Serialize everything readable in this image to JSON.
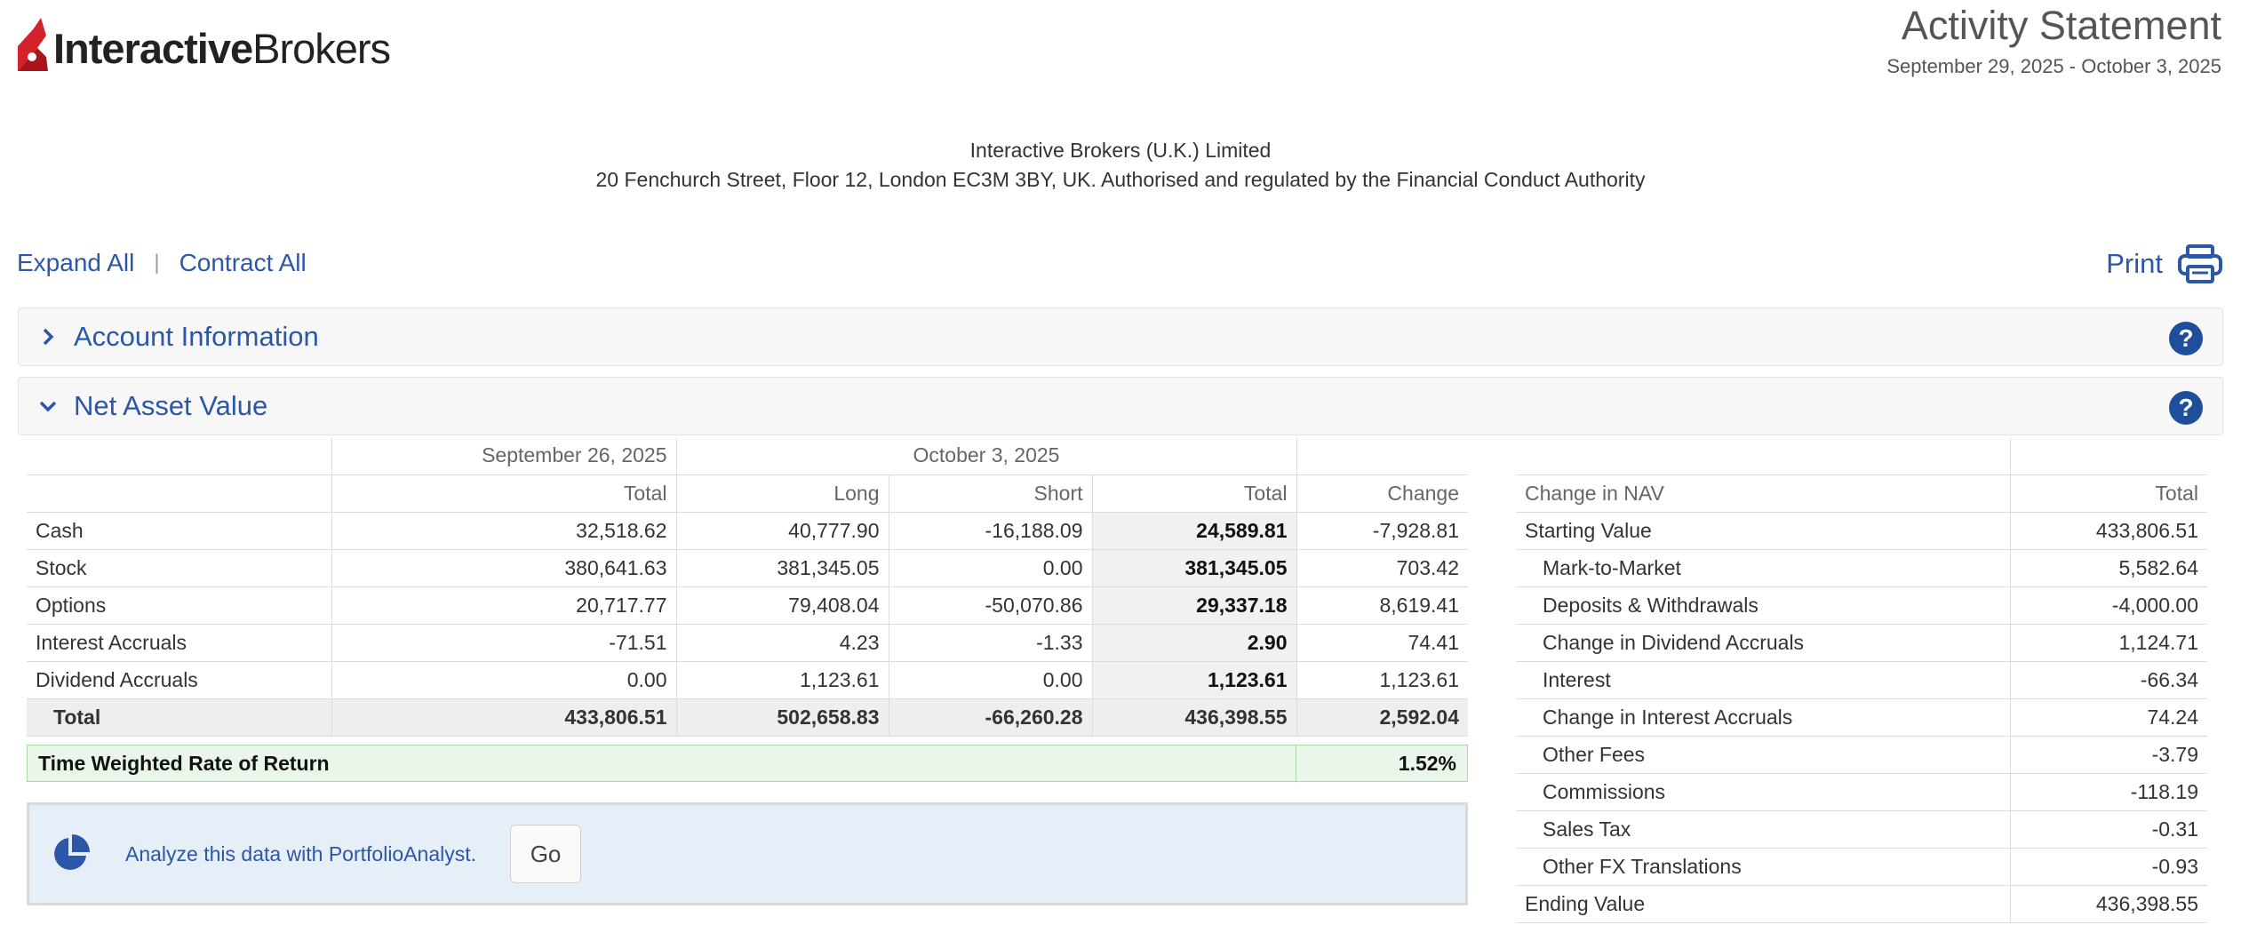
{
  "brand": {
    "name_bold": "Interactive",
    "name_thin": "Brokers",
    "accent": "#d3222a"
  },
  "header": {
    "title": "Activity Statement",
    "period": "September 29, 2025 - October 3, 2025"
  },
  "company": {
    "name": "Interactive Brokers (U.K.) Limited",
    "address": "20 Fenchurch Street, Floor 12, London EC3M 3BY, UK. Authorised and regulated by the Financial Conduct Authority"
  },
  "controls": {
    "expand_all": "Expand All",
    "separator": "|",
    "contract_all": "Contract All",
    "print": "Print"
  },
  "sections": [
    {
      "title": "Account Information",
      "state": "collapsed",
      "help": "?"
    },
    {
      "title": "Net Asset Value",
      "state": "expanded",
      "help": "?"
    }
  ],
  "nav": {
    "group_headers": {
      "prior": "September 26, 2025",
      "current": "October 3, 2025"
    },
    "columns": [
      "Total",
      "Long",
      "Short",
      "Total",
      "Change"
    ],
    "rows": [
      {
        "label": "Cash",
        "prior_total": "32,518.62",
        "long": "40,777.90",
        "short": "-16,188.09",
        "total": "24,589.81",
        "change": "-7,928.81"
      },
      {
        "label": "Stock",
        "prior_total": "380,641.63",
        "long": "381,345.05",
        "short": "0.00",
        "total": "381,345.05",
        "change": "703.42"
      },
      {
        "label": "Options",
        "prior_total": "20,717.77",
        "long": "79,408.04",
        "short": "-50,070.86",
        "total": "29,337.18",
        "change": "8,619.41"
      },
      {
        "label": "Interest Accruals",
        "prior_total": "-71.51",
        "long": "4.23",
        "short": "-1.33",
        "total": "2.90",
        "change": "74.41"
      },
      {
        "label": "Dividend Accruals",
        "prior_total": "0.00",
        "long": "1,123.61",
        "short": "0.00",
        "total": "1,123.61",
        "change": "1,123.61"
      }
    ],
    "total": {
      "label": "Total",
      "prior_total": "433,806.51",
      "long": "502,658.83",
      "short": "-66,260.28",
      "total": "436,398.55",
      "change": "2,592.04"
    },
    "twr": {
      "label": "Time Weighted Rate of Return",
      "value": "1.52%"
    }
  },
  "analyze": {
    "text": "Analyze this data with PortfolioAnalyst.",
    "button": "Go"
  },
  "change_in_nav": {
    "header": {
      "label": "Change in NAV",
      "total": "Total"
    },
    "rows": [
      {
        "label": "Starting Value",
        "value": "433,806.51",
        "indent": false
      },
      {
        "label": "Mark-to-Market",
        "value": "5,582.64",
        "indent": true
      },
      {
        "label": "Deposits & Withdrawals",
        "value": "-4,000.00",
        "indent": true
      },
      {
        "label": "Change in Dividend Accruals",
        "value": "1,124.71",
        "indent": true
      },
      {
        "label": "Interest",
        "value": "-66.34",
        "indent": true
      },
      {
        "label": "Change in Interest Accruals",
        "value": "74.24",
        "indent": true
      },
      {
        "label": "Other Fees",
        "value": "-3.79",
        "indent": true
      },
      {
        "label": "Commissions",
        "value": "-118.19",
        "indent": true
      },
      {
        "label": "Sales Tax",
        "value": "-0.31",
        "indent": true
      },
      {
        "label": "Other FX Translations",
        "value": "-0.93",
        "indent": true
      },
      {
        "label": "Ending Value",
        "value": "436,398.55",
        "indent": false
      }
    ]
  },
  "colors": {
    "link": "#2c56a8",
    "help_badge": "#1f4e9a",
    "twr_bg": "#eaf6ea",
    "analyze_bg": "#e6eef8"
  },
  "icons": {
    "logo": "flame-logo-icon",
    "print": "printer-icon",
    "help": "help-icon",
    "collapsed": "chevron-right-icon",
    "expanded": "chevron-down-icon",
    "analyst": "pie-chart-icon"
  }
}
